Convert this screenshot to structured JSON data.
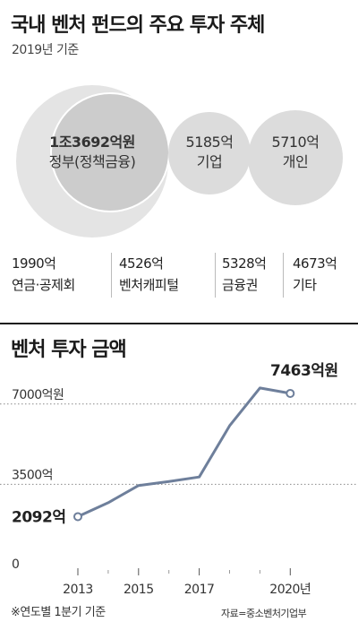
{
  "header": {
    "title": "국내 벤처 펀드의 주요 투자 주체",
    "subtitle": "2019년 기준"
  },
  "investors": {
    "government": {
      "amount": "1조3692억원",
      "label": "정부(정책금융)"
    },
    "company": {
      "amount": "5185억",
      "label": "기업"
    },
    "individual": {
      "amount": "5710억",
      "label": "개인"
    },
    "others": [
      {
        "amount": "1990억",
        "label": "연금·공제회"
      },
      {
        "amount": "4526억",
        "label": "벤처캐피털"
      },
      {
        "amount": "5328억",
        "label": "금융권"
      },
      {
        "amount": "4673억",
        "label": "기타"
      }
    ]
  },
  "chart_data": {
    "type": "line",
    "title": "벤처 투자 금액",
    "x": [
      2013,
      2014,
      2015,
      2016,
      2017,
      2018,
      2019,
      2020
    ],
    "values": [
      2092,
      2700,
      3450,
      3620,
      3820,
      6050,
      7700,
      7463
    ],
    "xticks": [
      "2013",
      "2015",
      "2017",
      "2020년"
    ],
    "xtick_values": [
      2013,
      2015,
      2017,
      2020
    ],
    "yticks": [
      "7000억원",
      "3500억",
      "0"
    ],
    "ytick_values": [
      7000,
      3500,
      0
    ],
    "ylim": [
      0,
      7463
    ],
    "grid": "dotted",
    "start_label": "2092억",
    "end_label": "7463억원",
    "line_color": "#6e7f9b",
    "note": "※연도별 1분기 기준",
    "source": "자료=중소벤처기업부"
  }
}
